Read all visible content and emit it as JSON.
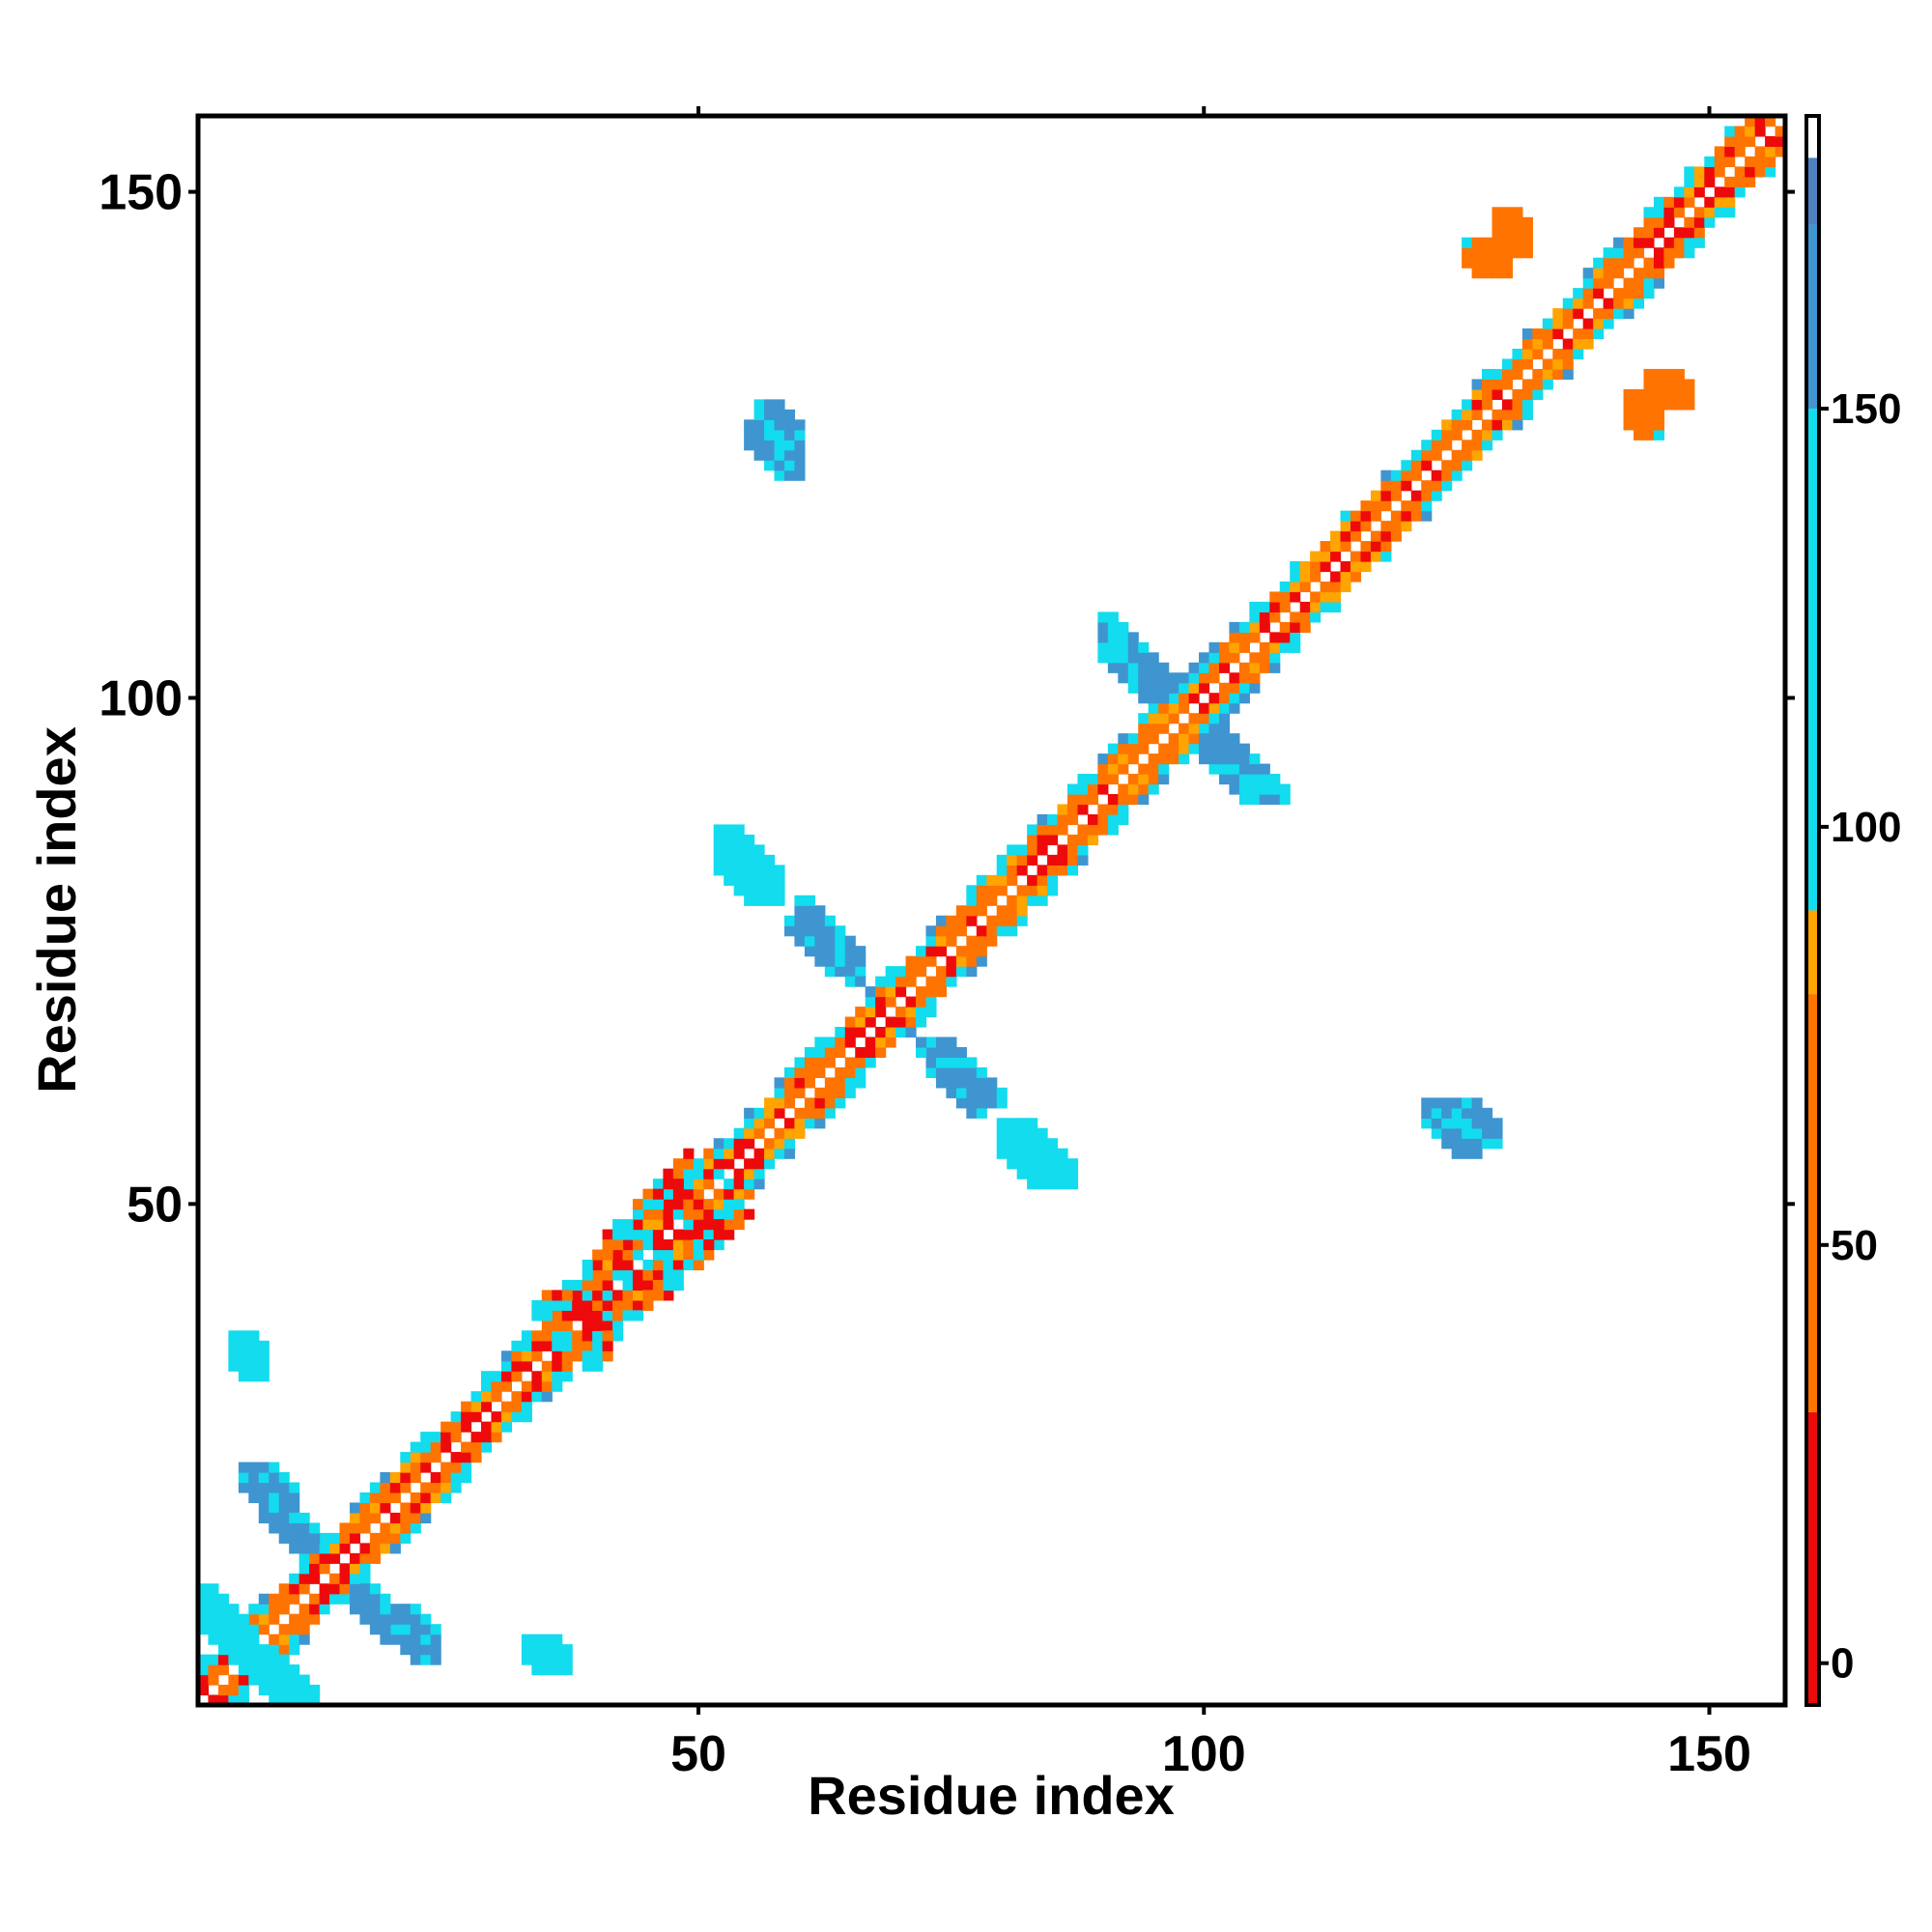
{
  "chart_data": {
    "type": "heatmap",
    "title": "",
    "xlabel": "Residue index",
    "ylabel": "Residue index",
    "xlim": [
      1,
      157
    ],
    "ylim": [
      1,
      157
    ],
    "x_ticks": [
      50,
      100,
      150
    ],
    "y_ticks": [
      50,
      100,
      150
    ],
    "grid": false,
    "colorbar": {
      "range": [
        -5,
        185
      ],
      "ticks": [
        0,
        50,
        100,
        150
      ],
      "bins": [
        {
          "from": -5,
          "to": 30,
          "color": "#ee0a0a"
        },
        {
          "from": 30,
          "to": 80,
          "color": "#ff7300"
        },
        {
          "from": 80,
          "to": 90,
          "color": "#ffa400"
        },
        {
          "from": 90,
          "to": 150,
          "color": "#12dcee"
        },
        {
          "from": 150,
          "to": 172,
          "color": "#3f95d0"
        },
        {
          "from": 172,
          "to": 180,
          "color": "#4f81c0"
        },
        {
          "from": 180,
          "to": 185,
          "color": "#ffffff"
        }
      ]
    },
    "regions": [
      {
        "name": "diagonal",
        "x_start": 1,
        "x_end": 157,
        "band": 3
      },
      {
        "name": "helix-antiparallel-block",
        "x": [
          36,
          55
        ],
        "y": [
          34,
          54
        ]
      },
      {
        "name": "contact-cluster",
        "x": [
          55,
          60
        ],
        "y": [
          122,
          127
        ],
        "value": 160
      },
      {
        "name": "contact-cluster",
        "x": [
          90,
          97
        ],
        "y": [
          100,
          106
        ],
        "value": 165
      },
      {
        "name": "contact-cluster",
        "x": [
          100,
          108
        ],
        "y": [
          90,
          96
        ],
        "value": 160
      },
      {
        "name": "contact-cluster",
        "x": [
          52,
          57
        ],
        "y": [
          80,
          85
        ],
        "value": 120
      },
      {
        "name": "contact-cluster",
        "x": [
          59,
          66
        ],
        "y": [
          73,
          78
        ],
        "value": 160
      },
      {
        "name": "contact-cluster",
        "x": [
          72,
          80
        ],
        "y": [
          60,
          66
        ],
        "value": 165
      },
      {
        "name": "contact-cluster",
        "x": [
          80,
          87
        ],
        "y": [
          52,
          58
        ],
        "value": 130
      },
      {
        "name": "contact-cluster",
        "x": [
          124,
          129
        ],
        "y": [
          56,
          60
        ],
        "value": 165
      },
      {
        "name": "contact-cluster",
        "x": [
          129,
          132
        ],
        "y": [
          144,
          148
        ],
        "value": 70
      },
      {
        "name": "contact-cluster",
        "x": [
          142,
          145
        ],
        "y": [
          126,
          130
        ],
        "value": 70
      },
      {
        "name": "contact-cluster",
        "x": [
          4,
          12
        ],
        "y": [
          1,
          6
        ],
        "value": 120
      },
      {
        "name": "contact-cluster",
        "x": [
          20,
          24
        ],
        "y": [
          5,
          10
        ],
        "value": 160
      },
      {
        "name": "contact-cluster",
        "x": [
          7,
          12
        ],
        "y": [
          16,
          21
        ],
        "value": 160
      },
      {
        "name": "contact-cluster",
        "x": [
          5,
          7
        ],
        "y": [
          33,
          37
        ],
        "value": 120
      },
      {
        "name": "contact-cluster",
        "x": [
          33,
          37
        ],
        "y": [
          4,
          6
        ],
        "value": 130
      }
    ]
  }
}
